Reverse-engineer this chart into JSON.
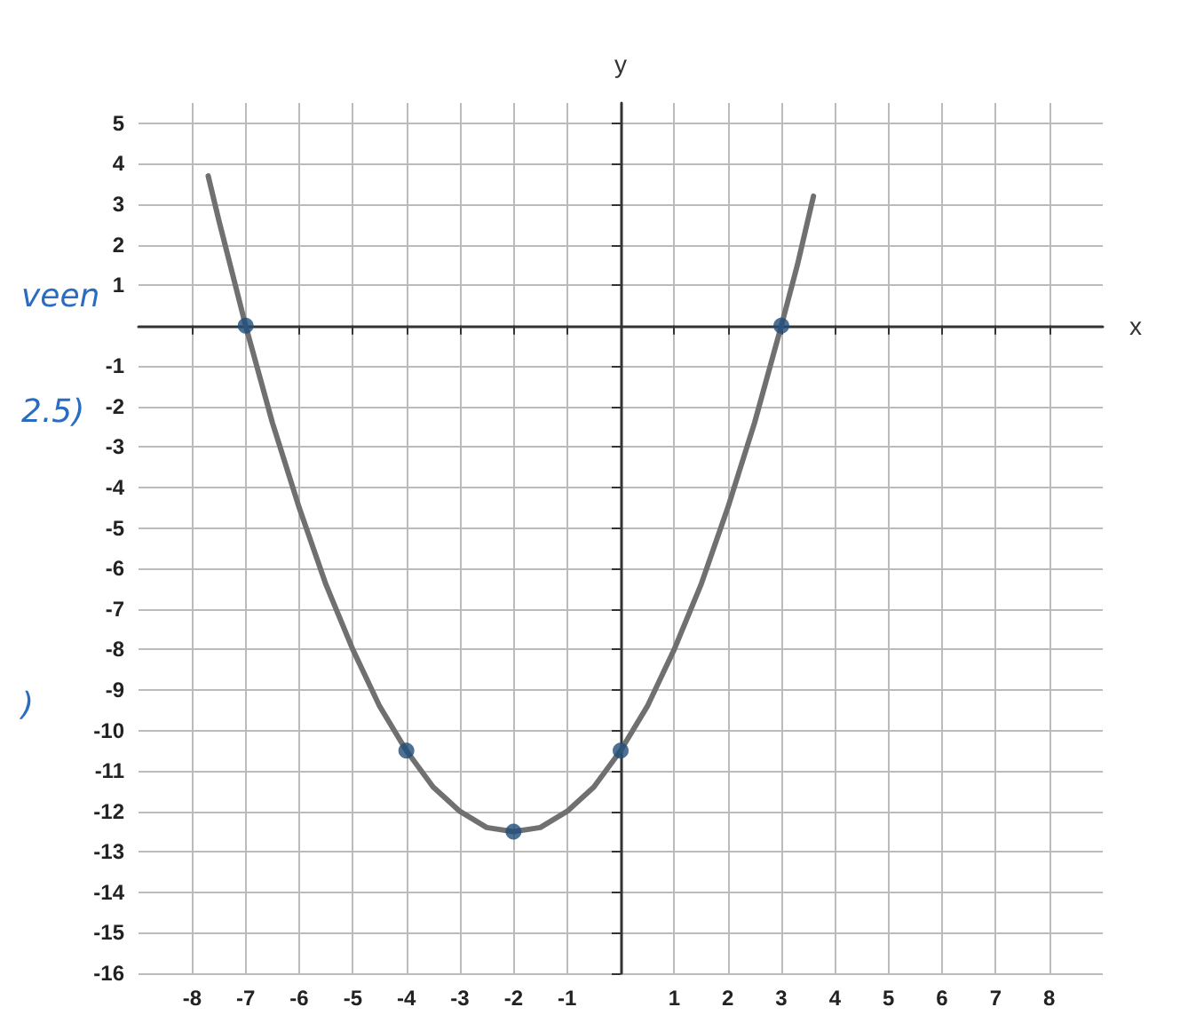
{
  "chart_data": {
    "type": "line",
    "xlabel": "x",
    "ylabel": "y",
    "xlim": [
      -9,
      9
    ],
    "xticks": [
      -8,
      -7,
      -6,
      -5,
      -4,
      -3,
      -2,
      -1,
      1,
      2,
      3,
      4,
      5,
      6,
      7,
      8
    ],
    "ylim": [
      -16,
      5.5
    ],
    "yticks": [
      -16,
      -15,
      -14,
      -13,
      -12,
      -11,
      -10,
      -9,
      -8,
      -7,
      -6,
      -5,
      -4,
      -3,
      -2,
      -1,
      1,
      2,
      3,
      4,
      5
    ],
    "grid": true,
    "series": [
      {
        "color": "#707070",
        "marker": "none",
        "x": [
          -7.7,
          -7.5,
          -7,
          -6.5,
          -6,
          -5.5,
          -5,
          -4.5,
          -4,
          -3.5,
          -3,
          -2.5,
          -2,
          -1.5,
          -1,
          -0.5,
          0,
          0.5,
          1,
          1.5,
          2,
          2.5,
          3,
          3.3,
          3.6
        ],
        "values": [
          3.7,
          2.6,
          0,
          -2.4,
          -4.5,
          -6.4,
          -8,
          -9.4,
          -10.5,
          -11.4,
          -12,
          -12.4,
          -12.5,
          -12.4,
          -12,
          -11.4,
          -10.5,
          -9.4,
          -8,
          -6.4,
          -4.5,
          -2.4,
          0,
          1.5,
          3.2
        ]
      },
      {
        "type": "scatter",
        "color": "#1f4e79",
        "marker": "circle",
        "x": [
          -7,
          -4,
          -2,
          0,
          3
        ],
        "values": [
          0,
          -10.5,
          -12.5,
          -10.5,
          0
        ]
      }
    ],
    "annotations": [
      "veen",
      "2.5)",
      ")"
    ]
  }
}
